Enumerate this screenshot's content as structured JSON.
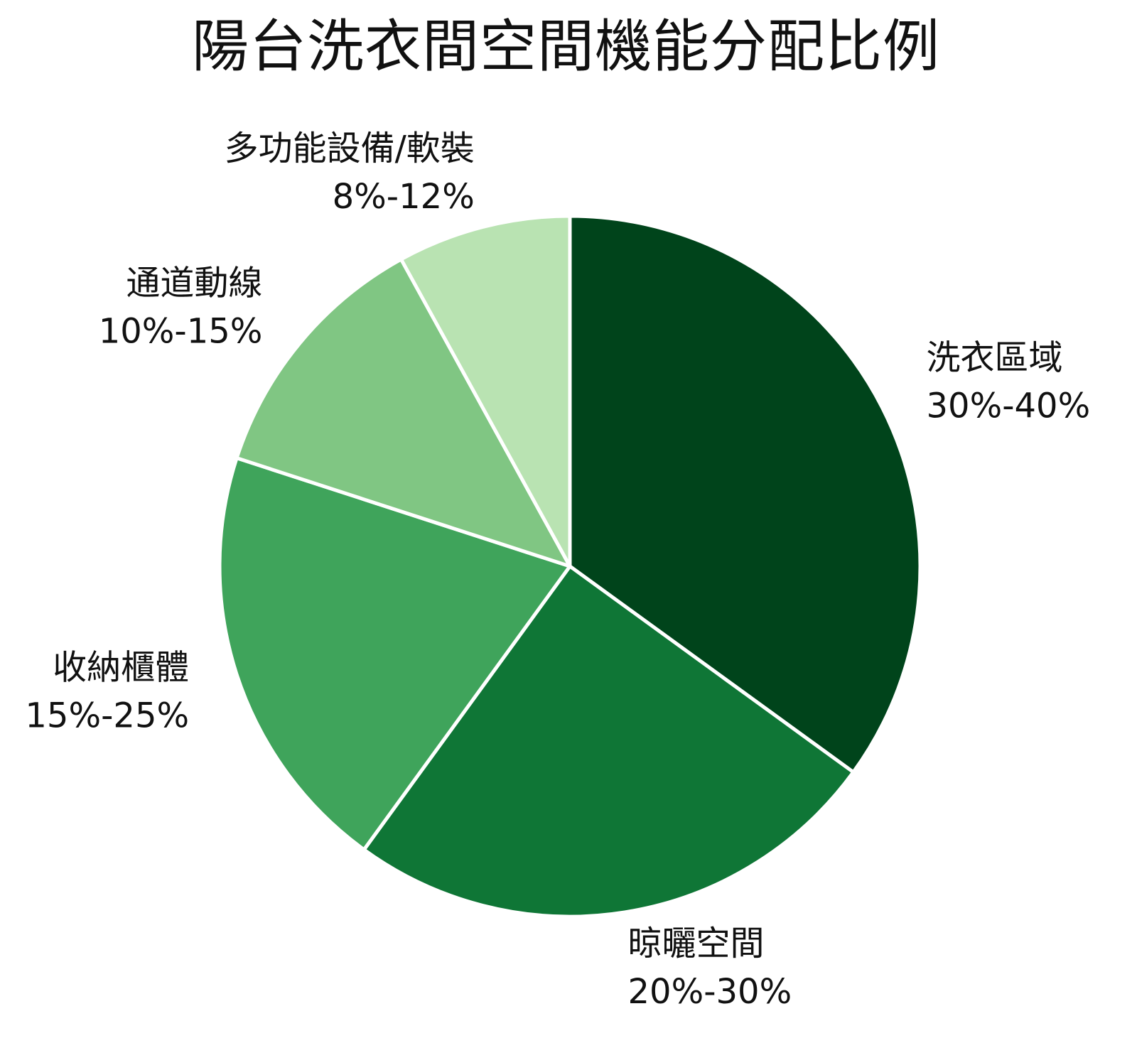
{
  "title": "陽台洗衣間空間機能分配比例",
  "chart_data": {
    "type": "pie",
    "title": "陽台洗衣間空間機能分配比例",
    "start_angle_deg": 90,
    "direction": "clockwise",
    "slices": [
      {
        "name": "洗衣區域",
        "range_label": "30%-40%",
        "value": 35,
        "color": "#00441b"
      },
      {
        "name": "晾曬空間",
        "range_label": "20%-30%",
        "value": 25,
        "color": "#0f7636"
      },
      {
        "name": "收納櫃體",
        "range_label": "15%-25%",
        "value": 20,
        "color": "#3fa45b"
      },
      {
        "name": "通道動線",
        "range_label": "10%-15%",
        "value": 12,
        "color": "#80c683"
      },
      {
        "name": "多功能設備/軟裝",
        "range_label": "8%-12%",
        "value": 8,
        "color": "#b9e3b2"
      }
    ],
    "edge_color": "#ffffff",
    "legend": "none"
  }
}
